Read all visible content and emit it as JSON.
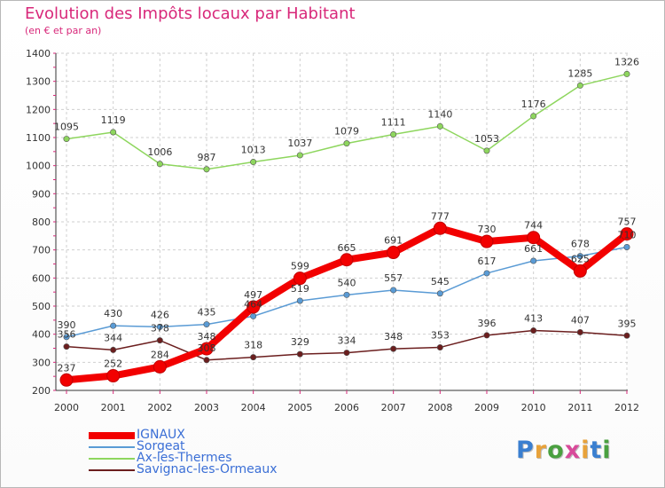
{
  "title": "Evolution des Impôts locaux par Habitant",
  "subtitle": "(en € et par an)",
  "brand": {
    "letters": [
      "P",
      "r",
      "o",
      "x",
      "i",
      "t",
      "i"
    ],
    "colors": [
      "#3a7fd0",
      "#e8a23a",
      "#4aa040",
      "#d84a9a",
      "#e8a23a",
      "#3a7fd0",
      "#4aa040"
    ]
  },
  "chart_data": {
    "type": "line",
    "x": [
      "2000",
      "2001",
      "2002",
      "2003",
      "2004",
      "2005",
      "2006",
      "2007",
      "2008",
      "2009",
      "2010",
      "2011",
      "2012"
    ],
    "yticks": [
      "200",
      "300",
      "400",
      "500",
      "600",
      "700",
      "800",
      "900",
      "1000",
      "1100",
      "1200",
      "1300",
      "1400"
    ],
    "ylim": [
      200,
      1400
    ],
    "grid": true,
    "legend_position": "bottom-left",
    "series": [
      {
        "name": "IGNAUX",
        "color": "#f20000",
        "values": [
          237,
          252,
          284,
          348,
          497,
          599,
          665,
          691,
          777,
          730,
          744,
          625,
          757
        ]
      },
      {
        "name": "Sorgeat",
        "color": "#5a9bd5",
        "values": [
          390,
          430,
          426,
          435,
          464,
          519,
          540,
          557,
          545,
          617,
          661,
          678,
          710
        ]
      },
      {
        "name": "Ax-les-Thermes",
        "color": "#8ed65e",
        "values": [
          1095,
          1119,
          1006,
          987,
          1013,
          1037,
          1079,
          1111,
          1140,
          1053,
          1176,
          1285,
          1326
        ]
      },
      {
        "name": "Savignac-les-Ormeaux",
        "color": "#6b1e1e",
        "values": [
          356,
          344,
          378,
          308,
          318,
          329,
          334,
          348,
          353,
          396,
          413,
          407,
          395
        ]
      }
    ]
  }
}
